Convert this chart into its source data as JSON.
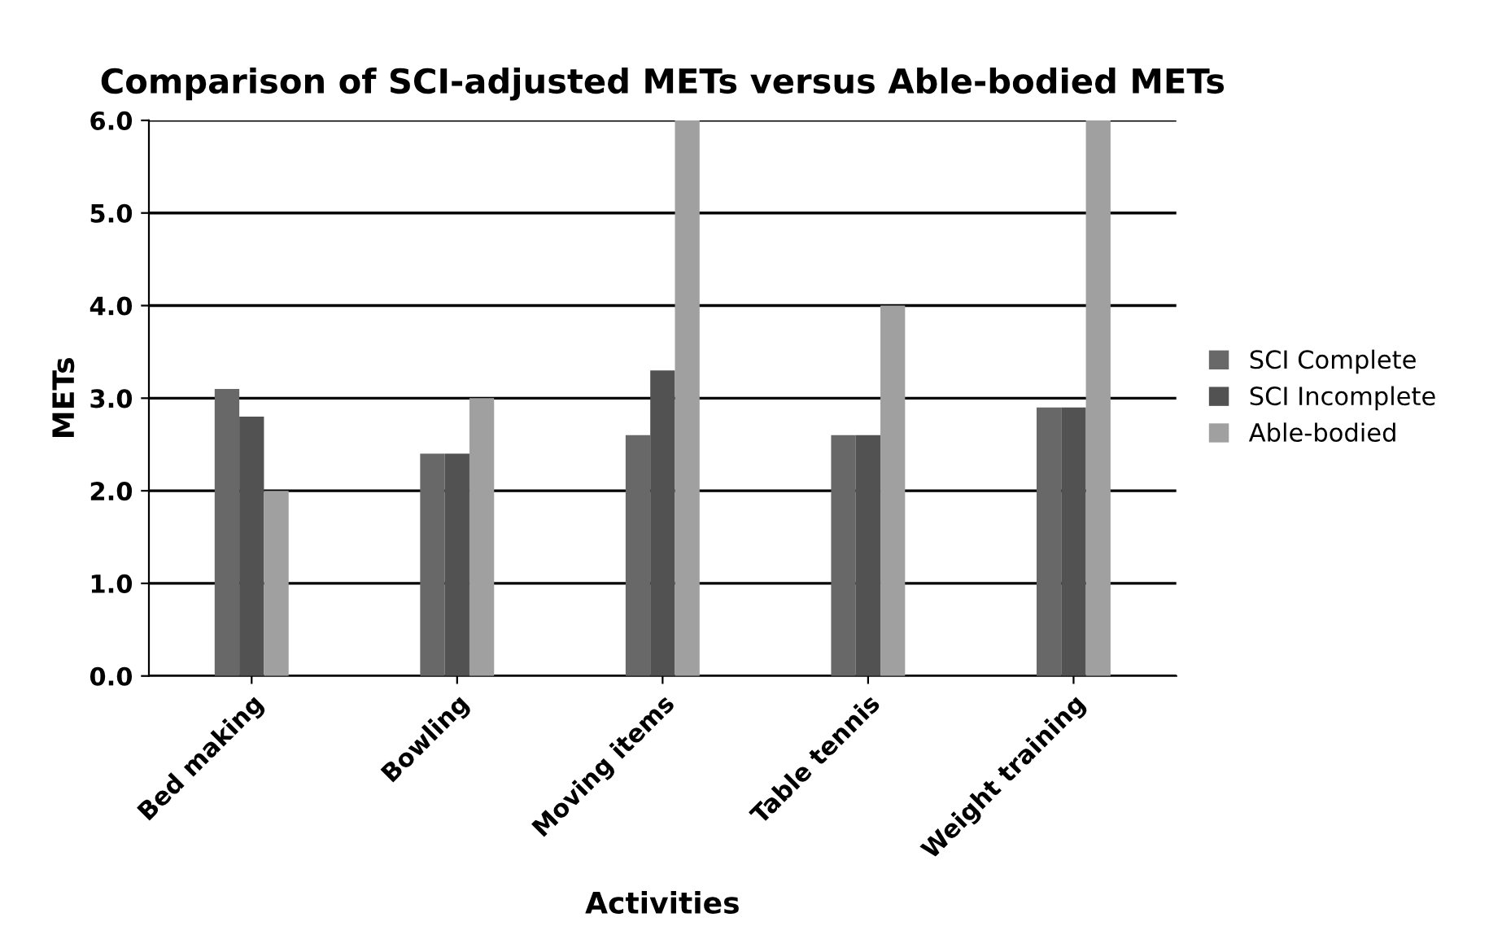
{
  "chart_data": {
    "type": "bar",
    "title": "Comparison of SCI-adjusted METs versus Able-bodied METs",
    "xlabel": "Activities",
    "ylabel": "METs",
    "categories": [
      "Bed making",
      "Bowling",
      "Moving items",
      "Table tennis",
      "Weight training"
    ],
    "series": [
      {
        "name": "SCI Complete",
        "color": "#686868",
        "values": [
          3.1,
          2.4,
          2.6,
          2.6,
          2.9
        ]
      },
      {
        "name": "SCI Incomplete",
        "color": "#525252",
        "values": [
          2.8,
          2.4,
          3.3,
          2.6,
          2.9
        ]
      },
      {
        "name": "Able-bodied",
        "color": "#a0a0a0",
        "values": [
          2.0,
          3.0,
          6.0,
          4.0,
          6.0
        ]
      }
    ],
    "ylim": [
      0,
      6
    ],
    "yticks": [
      {
        "value": 0,
        "label": "0.0"
      },
      {
        "value": 1,
        "label": "1.0"
      },
      {
        "value": 2,
        "label": "2.0"
      },
      {
        "value": 3,
        "label": "3.0"
      },
      {
        "value": 4,
        "label": "4.0"
      },
      {
        "value": 5,
        "label": "5.0"
      },
      {
        "value": 6,
        "label": "6.0"
      }
    ],
    "grid": "y",
    "legend": "right"
  }
}
